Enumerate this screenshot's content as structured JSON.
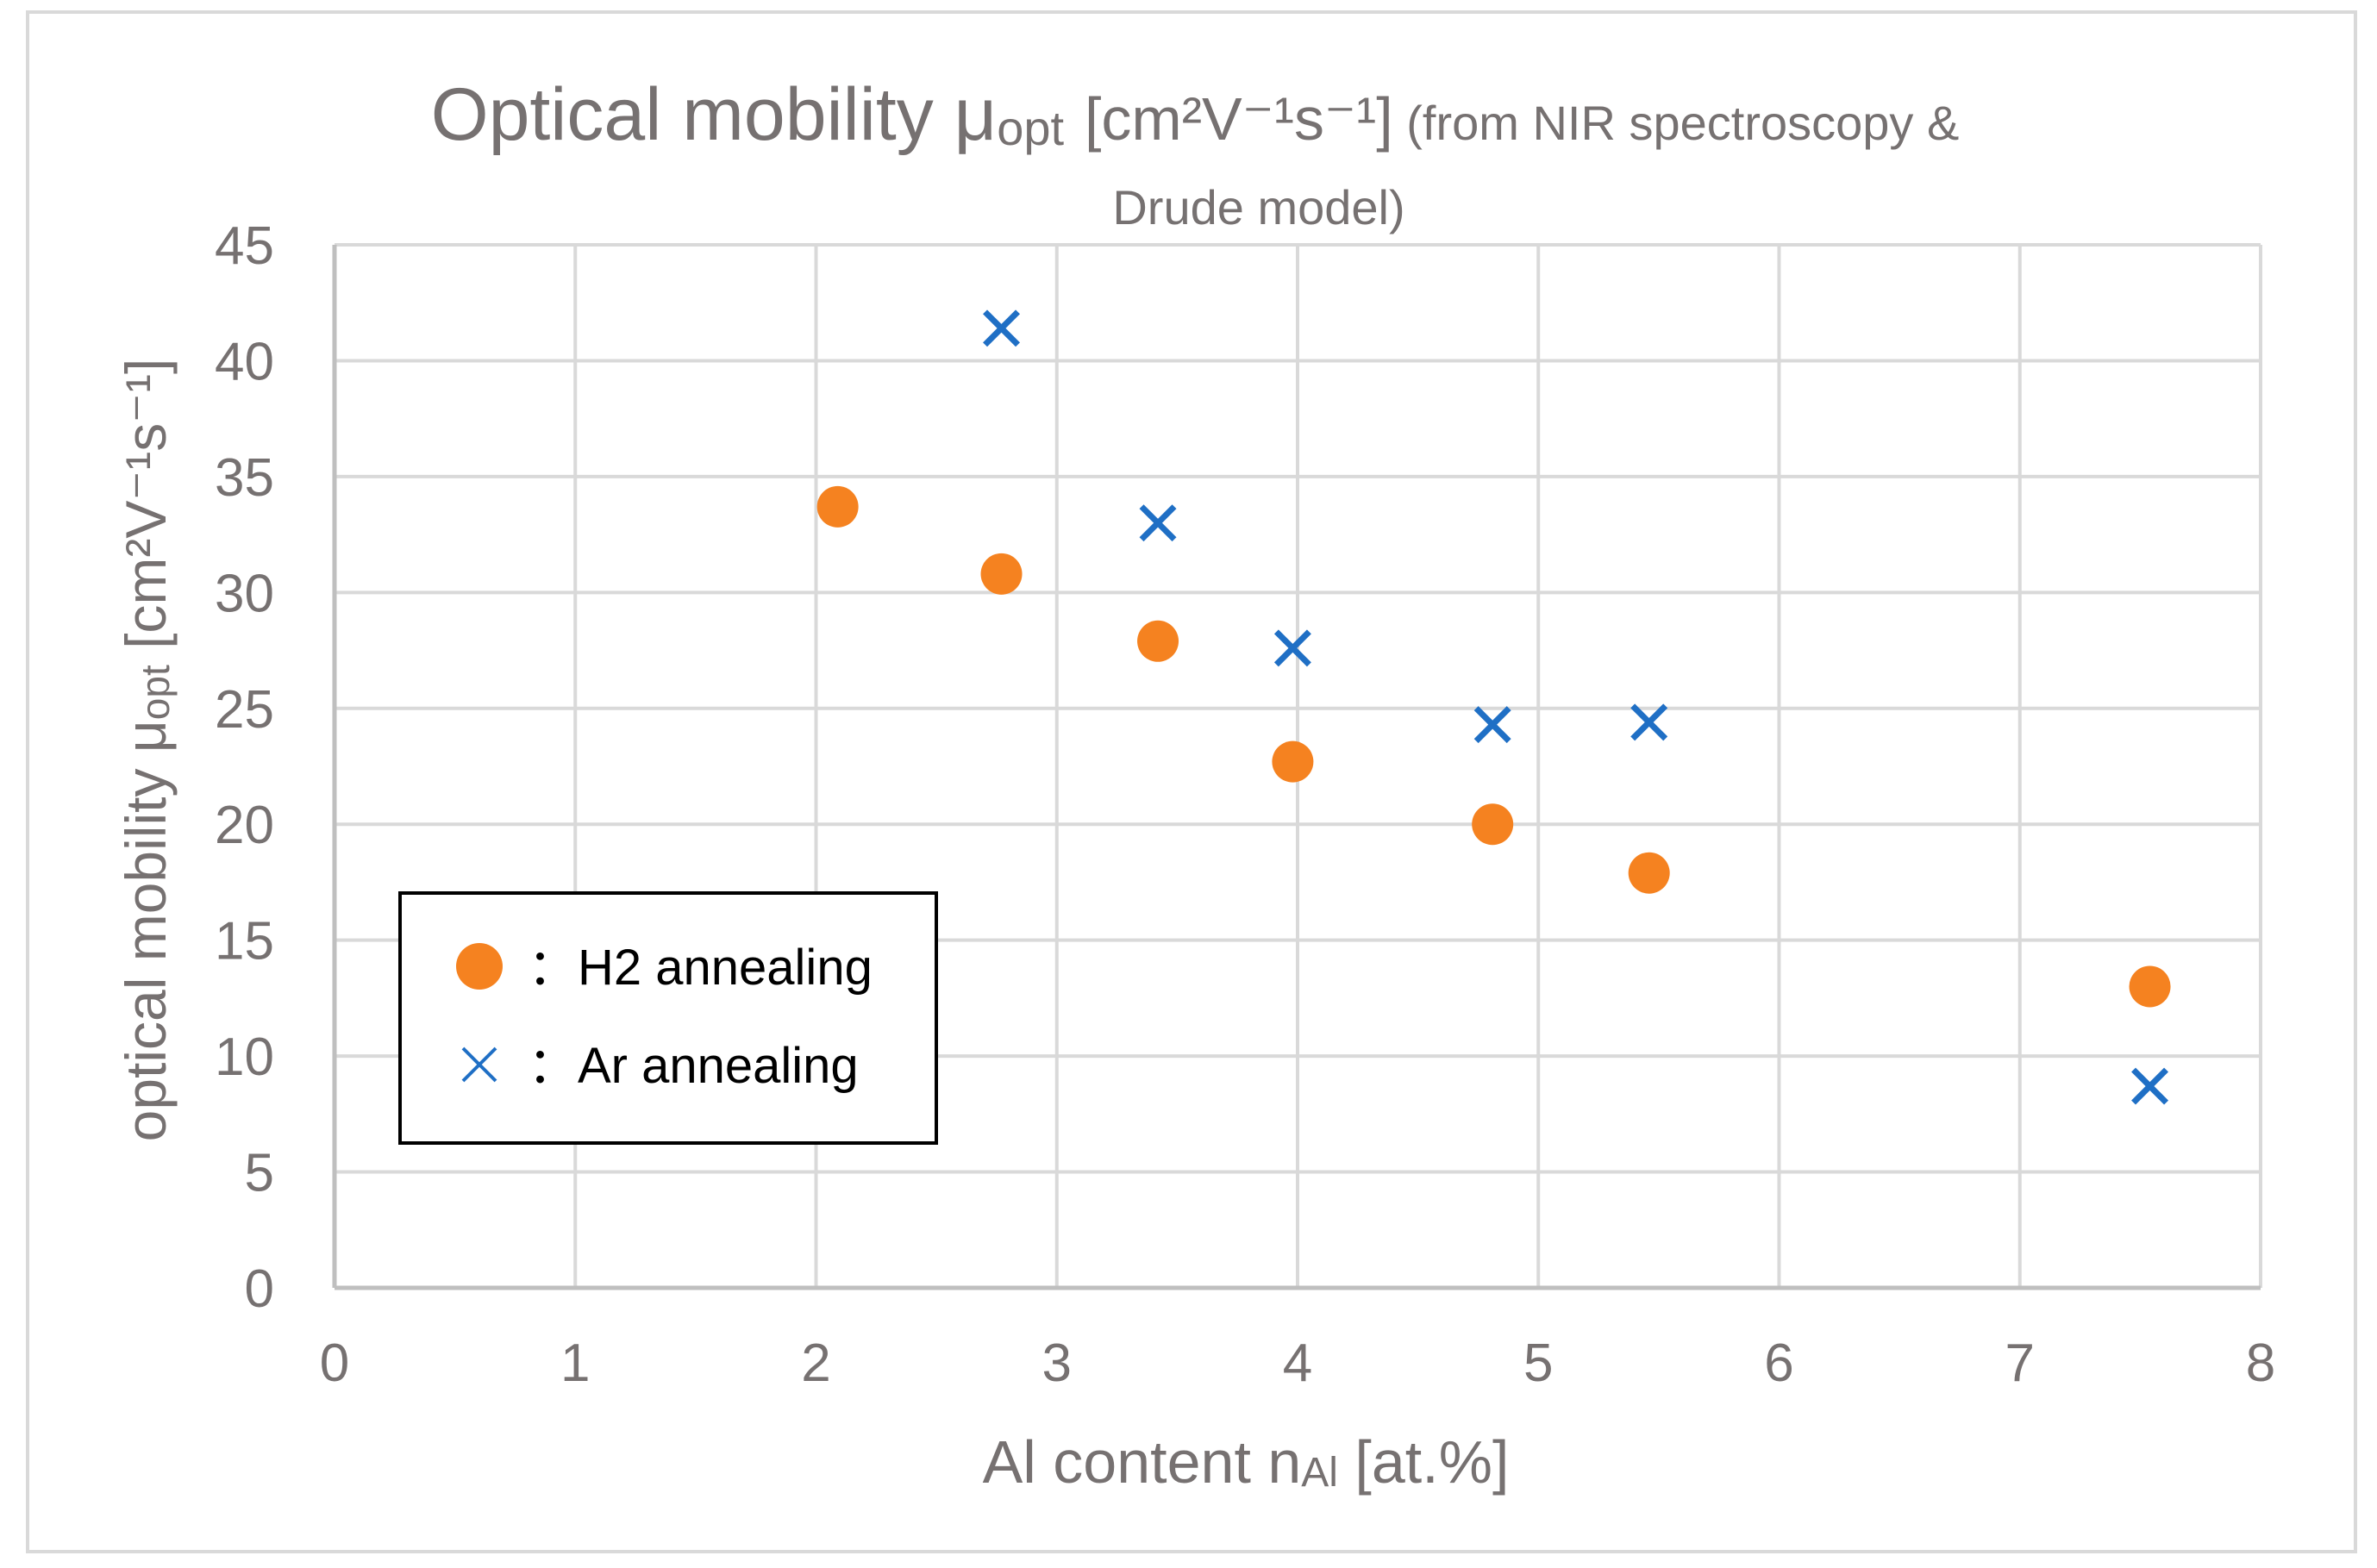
{
  "chart_data": {
    "type": "scatter",
    "title": {
      "main": "Optical mobility μ",
      "main_sub": "opt",
      "main_unit": "[cm²V⁻¹s⁻¹]",
      "note_line1": "(from NIR spectroscopy &",
      "note_line2": "Drude model)"
    },
    "xlabel": {
      "main": "Al content n",
      "sub": "Al",
      "unit": "[at.%]"
    },
    "ylabel": {
      "main": "optical mobility μ",
      "sub": "opt",
      "unit": "[cm²V⁻¹s⁻¹]"
    },
    "xlim": [
      0,
      8
    ],
    "ylim": [
      0,
      45
    ],
    "xticks": [
      0,
      1,
      2,
      3,
      4,
      5,
      6,
      7,
      8
    ],
    "yticks": [
      0,
      5,
      10,
      15,
      20,
      25,
      30,
      35,
      40,
      45
    ],
    "grid": true,
    "legend_position": "lower-left",
    "series": [
      {
        "name": "H2 annealing",
        "legend_label": "：H2 annealing",
        "marker": "circle",
        "color": "#F58220",
        "points": [
          {
            "x": 2.09,
            "y": 33.7
          },
          {
            "x": 2.77,
            "y": 30.8
          },
          {
            "x": 3.42,
            "y": 27.9
          },
          {
            "x": 3.98,
            "y": 22.7
          },
          {
            "x": 4.81,
            "y": 20.0
          },
          {
            "x": 5.46,
            "y": 17.9
          },
          {
            "x": 7.54,
            "y": 13.0
          }
        ]
      },
      {
        "name": "Ar annealing",
        "legend_label": "：Ar annealing",
        "marker": "x",
        "color": "#1F6FC5",
        "points": [
          {
            "x": 2.77,
            "y": 41.4
          },
          {
            "x": 3.42,
            "y": 33.0
          },
          {
            "x": 3.98,
            "y": 27.6
          },
          {
            "x": 4.81,
            "y": 24.3
          },
          {
            "x": 5.46,
            "y": 24.4
          },
          {
            "x": 7.54,
            "y": 8.7
          }
        ]
      }
    ],
    "colors": {
      "text": "#767171",
      "grid": "#D9D9D9",
      "axis": "#BFBFBF",
      "frame": "#D9D9D9",
      "legend_border": "#000000",
      "legend_text": "#000000"
    }
  }
}
